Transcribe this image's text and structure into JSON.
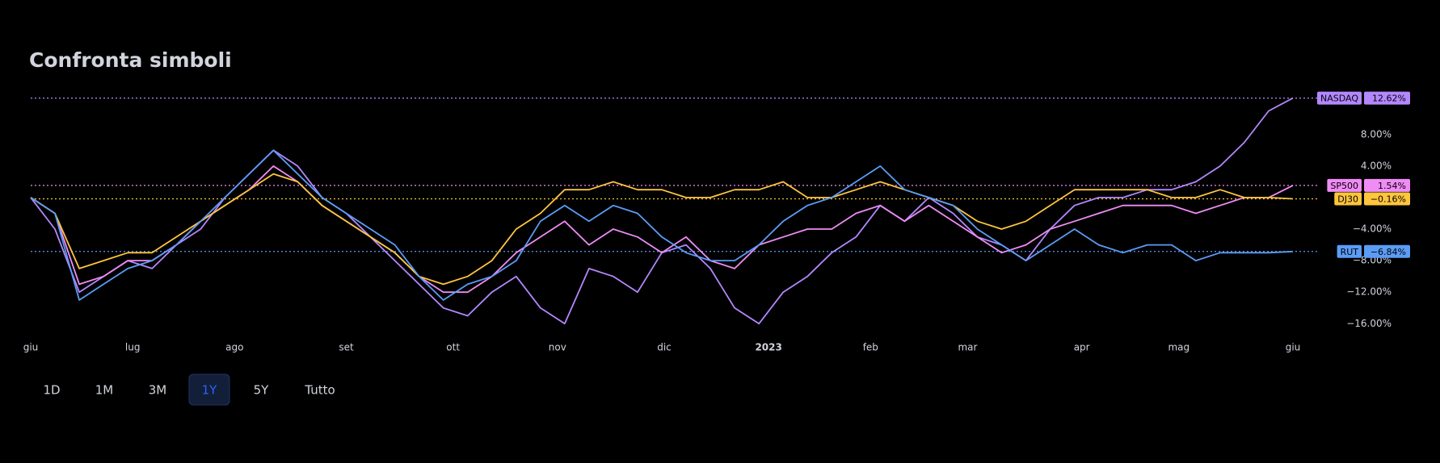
{
  "chart_data": {
    "type": "line",
    "title": "Confronta simboli",
    "x": [
      0,
      1,
      2,
      3,
      4,
      5,
      6,
      7,
      8,
      9,
      10,
      11,
      12,
      13,
      14,
      15,
      16,
      17,
      18,
      19,
      20,
      21,
      22,
      23,
      24,
      25,
      26,
      27,
      28,
      29,
      30,
      31,
      32,
      33,
      34,
      35,
      36,
      37,
      38,
      39,
      40,
      41,
      42,
      43,
      44,
      45,
      46,
      47,
      48,
      49,
      50,
      51,
      52
    ],
    "xlim": [
      0,
      52
    ],
    "xticks": [
      {
        "value": 0,
        "label": "giu"
      },
      {
        "value": 4.2,
        "label": "lug"
      },
      {
        "value": 8.4,
        "label": "ago"
      },
      {
        "value": 13.0,
        "label": "set"
      },
      {
        "value": 17.4,
        "label": "ott"
      },
      {
        "value": 21.7,
        "label": "nov"
      },
      {
        "value": 26.1,
        "label": "dic"
      },
      {
        "value": 30.4,
        "label": "2023"
      },
      {
        "value": 34.6,
        "label": "feb"
      },
      {
        "value": 38.6,
        "label": "mar"
      },
      {
        "value": 43.3,
        "label": "apr"
      },
      {
        "value": 47.3,
        "label": "mag"
      },
      {
        "value": 52,
        "label": "giu"
      }
    ],
    "ylim": [
      -17.3,
      13.4
    ],
    "yticks": [
      {
        "value": 8,
        "label": "8.00%"
      },
      {
        "value": 4,
        "label": "4.00%"
      },
      {
        "value": -4,
        "label": "−4.00%"
      },
      {
        "value": -8,
        "label": "−8.00%"
      },
      {
        "value": -12,
        "label": "−12.00%"
      },
      {
        "value": -16,
        "label": "−16.00%"
      }
    ],
    "series": [
      {
        "name": "NASDAQ",
        "color": "#b388ff",
        "end_value": 12.62,
        "end_label": "12.62%",
        "values": [
          0,
          -4,
          -12,
          -10,
          -8,
          -9,
          -6,
          -4,
          0,
          3,
          6,
          4,
          0,
          -2,
          -5,
          -8,
          -11,
          -14,
          -15,
          -12,
          -10,
          -14,
          -16,
          -9,
          -10,
          -12,
          -7,
          -6,
          -9,
          -14,
          -16,
          -12,
          -10,
          -7,
          -5,
          -1,
          -3,
          0,
          -2,
          -5,
          -6,
          -8,
          -4,
          -1,
          0,
          0,
          1,
          1,
          2,
          4,
          7,
          11,
          12.62
        ]
      },
      {
        "name": "SP500",
        "color": "#f08cf5",
        "end_value": 1.54,
        "end_label": "1.54%",
        "values": [
          0,
          -2,
          -11,
          -10,
          -8,
          -8,
          -6,
          -3,
          -1,
          1,
          4,
          2,
          -1,
          -3,
          -5,
          -7,
          -10,
          -12,
          -12,
          -10,
          -7,
          -5,
          -3,
          -6,
          -4,
          -5,
          -7,
          -5,
          -8,
          -9,
          -6,
          -5,
          -4,
          -4,
          -2,
          -1,
          -3,
          -1,
          -3,
          -5,
          -7,
          -6,
          -4,
          -3,
          -2,
          -1,
          -1,
          -1,
          -2,
          -1,
          0,
          0,
          1.54
        ]
      },
      {
        "name": "DJ30",
        "color": "#ffc53d",
        "end_value": -0.16,
        "end_label": "−0.16%",
        "values": [
          0,
          -2,
          -9,
          -8,
          -7,
          -7,
          -5,
          -3,
          -1,
          1,
          3,
          2,
          -1,
          -3,
          -5,
          -7,
          -10,
          -11,
          -10,
          -8,
          -4,
          -2,
          1,
          1,
          2,
          1,
          1,
          0,
          0,
          1,
          1,
          2,
          0,
          0,
          1,
          2,
          1,
          0,
          -1,
          -3,
          -4,
          -3,
          -1,
          1,
          1,
          1,
          1,
          0,
          0,
          1,
          0,
          0,
          -0.16
        ]
      },
      {
        "name": "RUT",
        "color": "#5b9cf6",
        "end_value": -6.84,
        "end_label": "−6.84%",
        "values": [
          0,
          -2,
          -13,
          -11,
          -9,
          -8,
          -6,
          -3,
          0,
          3,
          6,
          3,
          0,
          -2,
          -4,
          -6,
          -10,
          -13,
          -11,
          -10,
          -8,
          -3,
          -1,
          -3,
          -1,
          -2,
          -5,
          -7,
          -8,
          -8,
          -6,
          -3,
          -1,
          0,
          2,
          4,
          1,
          0,
          -1,
          -4,
          -6,
          -8,
          -6,
          -4,
          -6,
          -7,
          -6,
          -6,
          -8,
          -7,
          -7,
          -7,
          -6.84
        ]
      }
    ],
    "ranges": [
      "1D",
      "1M",
      "3M",
      "1Y",
      "5Y",
      "Tutto"
    ],
    "active_range": "1Y"
  }
}
